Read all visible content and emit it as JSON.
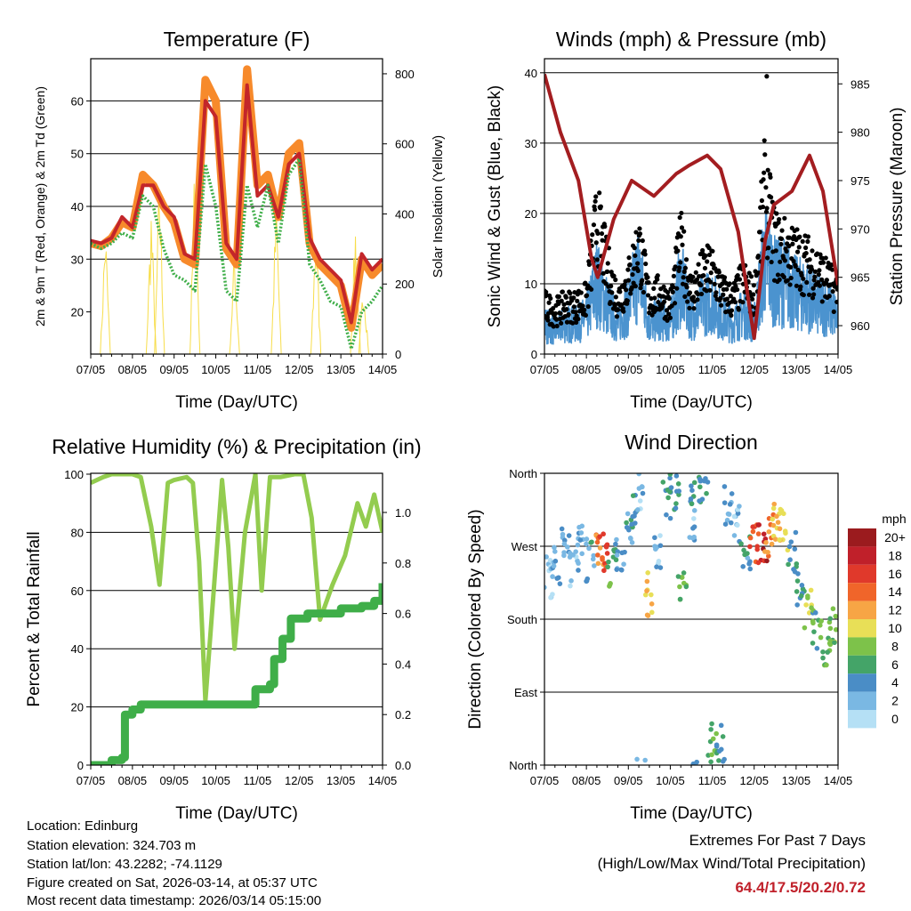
{
  "x_tick_labels": [
    "07/05",
    "08/05",
    "09/05",
    "10/05",
    "11/05",
    "12/05",
    "13/05",
    "14/05"
  ],
  "xlabel": "Time (Day/UTC)",
  "chart_data": [
    {
      "type": "line",
      "title": "Temperature (F)",
      "ylabel": "2m & 9m T (Red, Orange) & 2m Td (Green)",
      "ylabel_right": "Solar Insolation (Yellow)",
      "ylim": [
        12,
        68
      ],
      "ylim_right": [
        0,
        843
      ],
      "yticks": [
        20,
        30,
        40,
        50,
        60
      ],
      "yticks_right": [
        0,
        200,
        400,
        600,
        800
      ],
      "gridlines": [
        30,
        40,
        50,
        60
      ],
      "xlim_days": [
        0,
        7
      ],
      "x_step_days": 0.25,
      "series": [
        {
          "name": "9m T",
          "color": "#f78a2b",
          "style": "thick",
          "values": [
            33,
            32.5,
            34,
            37,
            36,
            46,
            44,
            40,
            37,
            30,
            29,
            64,
            60,
            32,
            29,
            66,
            44,
            46,
            38,
            50,
            52,
            33,
            29,
            27,
            25,
            17,
            30,
            27,
            29
          ]
        },
        {
          "name": "2m T",
          "color": "#c3262a",
          "style": "line",
          "values": [
            33.5,
            33,
            34,
            38,
            36,
            44,
            44,
            40,
            38,
            31,
            30,
            60,
            57,
            33,
            30,
            63,
            42,
            44,
            38,
            48,
            50,
            34,
            30,
            28,
            26,
            18,
            31,
            28,
            30
          ]
        },
        {
          "name": "2m Td",
          "color": "#3fae49",
          "style": "dotted",
          "values": [
            33,
            32,
            33,
            35,
            34,
            42,
            40,
            32,
            27,
            26,
            24,
            48,
            40,
            24,
            22,
            44,
            36,
            44,
            33,
            46,
            49,
            29,
            26,
            22,
            21,
            13,
            20,
            22,
            25
          ]
        }
      ],
      "solar": {
        "name": "Solar Insolation",
        "color": "#f7dd4a",
        "peaks": [
          [
            0.35,
            400
          ],
          [
            1.45,
            450
          ],
          [
            1.65,
            560
          ],
          [
            2.5,
            620
          ],
          [
            3.45,
            330
          ],
          [
            4.45,
            480
          ],
          [
            5.4,
            420
          ],
          [
            6.35,
            410
          ],
          [
            6.55,
            250
          ]
        ]
      }
    },
    {
      "type": "line",
      "title": "Winds (mph) & Pressure (mb)",
      "ylabel": "Sonic Wind & Gust (Blue, Black)",
      "ylabel_right": "Station Pressure (Maroon)",
      "ylim": [
        0,
        42
      ],
      "ylim_right": [
        957.06,
        987.6
      ],
      "yticks": [
        0,
        10,
        20,
        30,
        40
      ],
      "yticks_right": [
        960,
        965,
        970,
        975,
        980,
        985
      ],
      "gridlines": [
        10,
        20,
        30,
        40
      ],
      "x_step_days": 0.25,
      "wind_speed": {
        "name": "Sonic Wind",
        "color": "#4b93cf",
        "values": [
          5,
          4,
          5,
          5,
          6,
          12,
          8,
          5,
          8,
          14,
          5,
          6,
          5,
          12,
          6,
          8,
          9,
          6,
          5,
          7,
          5,
          16,
          12,
          12,
          10,
          10,
          8,
          8,
          6
        ]
      },
      "gust": {
        "name": "Gust",
        "color": "#000000",
        "values": [
          8,
          7,
          8,
          8,
          9,
          22,
          14,
          9,
          12,
          18,
          9,
          10,
          8,
          18,
          10,
          13,
          14,
          10,
          9,
          12,
          9,
          27,
          18,
          17,
          16,
          15,
          14,
          12,
          10
        ],
        "max": 39.5
      },
      "pressure": {
        "name": "Station Pressure",
        "color": "#a31d20",
        "points": [
          [
            0,
            986
          ],
          [
            0.38,
            980
          ],
          [
            0.81,
            975
          ],
          [
            1.12,
            967
          ],
          [
            1.27,
            965
          ],
          [
            1.65,
            971
          ],
          [
            2.08,
            975
          ],
          [
            2.61,
            973.4
          ],
          [
            3.14,
            975.7
          ],
          [
            3.46,
            976.6
          ],
          [
            3.88,
            977.6
          ],
          [
            4.2,
            976.2
          ],
          [
            4.62,
            969.7
          ],
          [
            5.0,
            958.7
          ],
          [
            5.26,
            968.8
          ],
          [
            5.47,
            972.5
          ],
          [
            5.9,
            973.9
          ],
          [
            6.32,
            977.6
          ],
          [
            6.64,
            973.9
          ],
          [
            7,
            964.2
          ]
        ]
      }
    },
    {
      "type": "line",
      "title": "Relative Humidity (%) & Precipitation (in)",
      "ylabel": "Percent & Total Rainfall",
      "ylim": [
        0,
        100.3
      ],
      "ylim_right": [
        0,
        1.155
      ],
      "yticks": [
        0,
        20,
        40,
        60,
        80,
        100
      ],
      "yticks_right": [
        "0.0",
        "0.2",
        "0.4",
        "0.6",
        "0.8",
        "1.0"
      ],
      "gridlines": [
        20,
        40,
        60,
        80
      ],
      "rh": {
        "name": "Relative Humidity",
        "color": "#93cc4f",
        "points": [
          [
            0,
            97
          ],
          [
            0.15,
            98
          ],
          [
            0.3,
            99
          ],
          [
            0.5,
            100
          ],
          [
            0.8,
            100
          ],
          [
            1.0,
            100
          ],
          [
            1.2,
            99
          ],
          [
            1.45,
            82
          ],
          [
            1.65,
            62
          ],
          [
            1.85,
            97
          ],
          [
            2.0,
            98
          ],
          [
            2.3,
            99
          ],
          [
            2.45,
            97
          ],
          [
            2.6,
            70
          ],
          [
            2.75,
            22
          ],
          [
            2.95,
            60
          ],
          [
            3.15,
            98
          ],
          [
            3.3,
            75
          ],
          [
            3.45,
            40
          ],
          [
            3.7,
            80
          ],
          [
            3.95,
            100
          ],
          [
            4.1,
            60
          ],
          [
            4.3,
            99
          ],
          [
            4.55,
            99
          ],
          [
            4.9,
            100
          ],
          [
            5.1,
            100
          ],
          [
            5.3,
            85
          ],
          [
            5.5,
            50
          ],
          [
            5.8,
            62
          ],
          [
            6.1,
            72
          ],
          [
            6.4,
            90
          ],
          [
            6.6,
            82
          ],
          [
            6.8,
            93
          ],
          [
            7.0,
            80
          ]
        ]
      },
      "precip": {
        "name": "Total Precipitation",
        "color": "#3fae49",
        "points": [
          [
            0,
            0
          ],
          [
            0.5,
            0.02
          ],
          [
            0.75,
            0.03
          ],
          [
            0.82,
            0.2
          ],
          [
            1.0,
            0.22
          ],
          [
            1.2,
            0.24
          ],
          [
            3.9,
            0.24
          ],
          [
            3.95,
            0.3
          ],
          [
            4.3,
            0.32
          ],
          [
            4.4,
            0.42
          ],
          [
            4.6,
            0.5
          ],
          [
            4.8,
            0.58
          ],
          [
            5.2,
            0.6
          ],
          [
            6.0,
            0.62
          ],
          [
            6.5,
            0.63
          ],
          [
            6.8,
            0.65
          ],
          [
            7.0,
            0.72
          ]
        ]
      }
    },
    {
      "type": "scatter",
      "title": "Wind Direction",
      "ylabel": "Direction (Colored By Speed)",
      "ylim": [
        0,
        360
      ],
      "ytick_values": [
        0,
        90,
        180,
        270,
        360
      ],
      "yticks": [
        "North",
        "East",
        "South",
        "West",
        "North"
      ],
      "gridlines": [
        90,
        180,
        270
      ],
      "points_day_dir_speed": [
        [
          0.1,
          230,
          2
        ],
        [
          0.3,
          250,
          3
        ],
        [
          0.5,
          270,
          4
        ],
        [
          0.7,
          240,
          3
        ],
        [
          0.9,
          280,
          4
        ],
        [
          1.1,
          250,
          5
        ],
        [
          1.3,
          270,
          14
        ],
        [
          1.4,
          265,
          16
        ],
        [
          1.6,
          240,
          8
        ],
        [
          1.8,
          260,
          4
        ],
        [
          2.0,
          290,
          5
        ],
        [
          2.1,
          320,
          6
        ],
        [
          2.3,
          340,
          3
        ],
        [
          2.5,
          210,
          12
        ],
        [
          2.7,
          260,
          3
        ],
        [
          2.9,
          330,
          6
        ],
        [
          3.1,
          340,
          6
        ],
        [
          3.3,
          210,
          8
        ],
        [
          3.5,
          300,
          3
        ],
        [
          3.6,
          340,
          6
        ],
        [
          3.8,
          350,
          5
        ],
        [
          4.0,
          25,
          8
        ],
        [
          4.2,
          30,
          6
        ],
        [
          4.4,
          320,
          4
        ],
        [
          4.6,
          300,
          3
        ],
        [
          4.8,
          260,
          5
        ],
        [
          5.0,
          270,
          16
        ],
        [
          5.2,
          275,
          19
        ],
        [
          5.35,
          285,
          14
        ],
        [
          5.5,
          300,
          12
        ],
        [
          5.7,
          290,
          11
        ],
        [
          5.9,
          260,
          6
        ],
        [
          6.1,
          220,
          6
        ],
        [
          6.3,
          190,
          10
        ],
        [
          6.5,
          170,
          7
        ],
        [
          6.7,
          150,
          8
        ],
        [
          6.9,
          170,
          9
        ]
      ],
      "legend": {
        "title": "mph",
        "placement": "right",
        "labels": [
          "20+",
          "18",
          "16",
          "14",
          "12",
          "10",
          "8",
          "6",
          "4",
          "2",
          "0"
        ],
        "colors": [
          "#9b1b1e",
          "#c0202a",
          "#e0392b",
          "#f0652a",
          "#f7a545",
          "#e8df57",
          "#7dc24a",
          "#44a468",
          "#4a8dc6",
          "#7ab8e3",
          "#b5e0f5"
        ]
      }
    }
  ],
  "footer": {
    "location": "Location: Edinburg",
    "elevation": "Station elevation: 324.703 m",
    "latlon": "Station lat/lon: 43.2282; -74.1129",
    "created": "Figure created on Sat, 2026-03-14, at 05:37 UTC",
    "timestamp": "Most recent data timestamp: 2026/03/14 05:15:00"
  },
  "extremes": {
    "title": "Extremes For Past 7 Days",
    "subtitle": "(High/Low/Max Wind/Total Precipitation)",
    "values": "64.4/17.5/20.2/0.72"
  }
}
